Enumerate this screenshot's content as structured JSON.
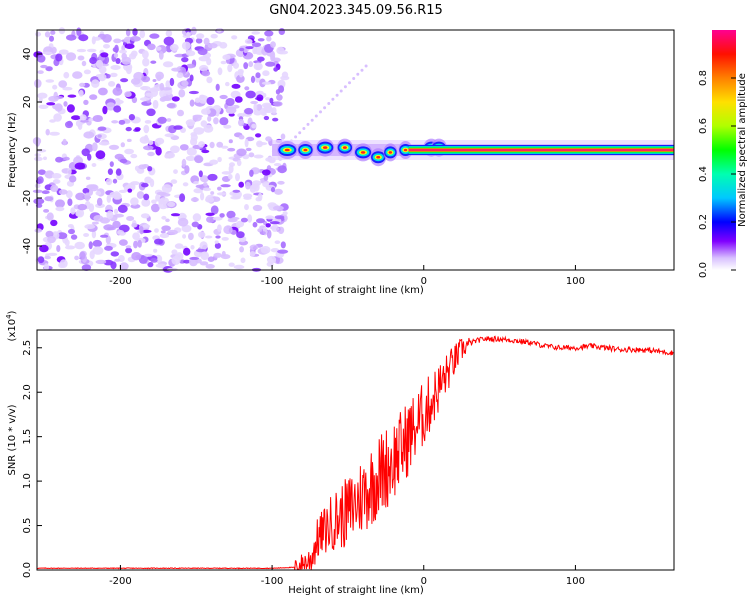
{
  "title": "GN04.2023.345.09.56.R15",
  "chart_data": [
    {
      "type": "heatmap",
      "xlabel": "Height of straight line (km)",
      "ylabel": "Frequency (Hz)",
      "xlim": [
        -255,
        165
      ],
      "ylim": [
        -50,
        50
      ],
      "xticks": [
        -200,
        -100,
        0,
        100
      ],
      "yticks": [
        -40,
        -20,
        0,
        20,
        40
      ],
      "colorbar": {
        "label": "Normalized spectral amplitude",
        "range": [
          0.0,
          1.0
        ],
        "ticks": [
          0.0,
          0.2,
          0.4,
          0.6,
          0.8
        ],
        "tick_labels": [
          "0.0",
          "0.2",
          "0.4",
          "0.6",
          "0.8"
        ],
        "colors": [
          "#ffffff",
          "#c8a0ff",
          "#7a00ff",
          "#0000ff",
          "#00e0ff",
          "#00ff00",
          "#ffff00",
          "#ff8000",
          "#ff0000",
          "#ff0080"
        ]
      },
      "features": {
        "noise_region_x": [
          -255,
          -95
        ],
        "noise_peak_amplitude": 0.35,
        "signal_frequency": 0,
        "signal_start_x": -100,
        "signal_peak_amplitude": 1.0
      }
    },
    {
      "type": "line",
      "xlabel": "Height of straight line (km)",
      "ylabel": "SNR (10 * v/v)",
      "yscale_label": "(x10",
      "yscale_exp": "4",
      "xlim": [
        -255,
        165
      ],
      "ylim": [
        0,
        2.7
      ],
      "xticks": [
        -200,
        -100,
        0,
        100
      ],
      "yticks": [
        0.0,
        0.5,
        1.0,
        1.5,
        2.0,
        2.5
      ],
      "ytick_labels": [
        "0.0",
        "0.5",
        "1.0",
        "1.5",
        "2.0",
        "2.5"
      ],
      "color": "#ff0000",
      "series": [
        {
          "x": [
            -255,
            -200,
            -150,
            -100,
            -85,
            -75,
            -70,
            -65,
            -60,
            -55,
            -50,
            -45,
            -40,
            -35,
            -30,
            -25,
            -20,
            -15,
            -10,
            -5,
            0,
            5,
            10,
            15,
            20,
            25,
            30,
            35,
            40,
            50,
            60,
            70,
            80,
            90,
            100,
            110,
            120,
            130,
            140,
            150,
            160,
            165
          ],
          "y": [
            0.02,
            0.02,
            0.02,
            0.02,
            0.03,
            0.1,
            0.35,
            0.45,
            0.55,
            0.6,
            0.65,
            0.75,
            0.85,
            0.95,
            1.05,
            1.15,
            1.25,
            1.35,
            1.5,
            1.62,
            1.75,
            1.9,
            2.05,
            2.2,
            2.35,
            2.48,
            2.55,
            2.58,
            2.6,
            2.6,
            2.58,
            2.56,
            2.52,
            2.5,
            2.5,
            2.52,
            2.5,
            2.48,
            2.48,
            2.47,
            2.45,
            2.44
          ]
        }
      ]
    }
  ]
}
